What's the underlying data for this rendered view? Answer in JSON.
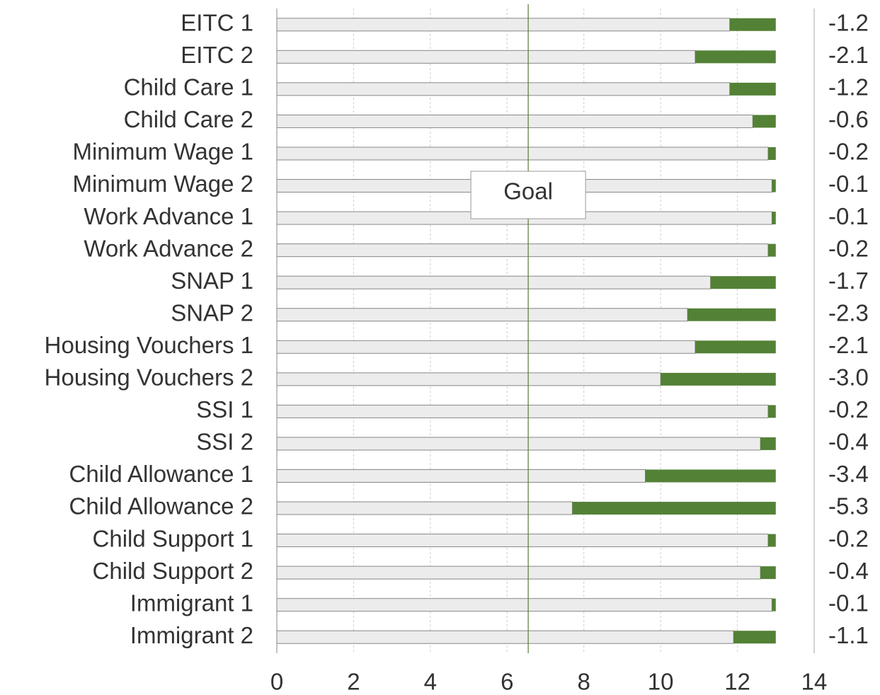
{
  "chart_data": {
    "type": "bar",
    "categories": [
      "EITC 1",
      "EITC 2",
      "Child Care 1",
      "Child Care 2",
      "Minimum Wage 1",
      "Minimum Wage 2",
      "Work Advance 1",
      "Work Advance 2",
      "SNAP 1",
      "SNAP 2",
      "Housing Vouchers 1",
      "Housing Vouchers 2",
      "SSI 1",
      "SSI 2",
      "Child Allowance 1",
      "Child Allowance 2",
      "Child Support 1",
      "Child Support 2",
      "Immigrant 1",
      "Immigrant 2"
    ],
    "series": [
      {
        "color": "#ececec",
        "values": [
          11.8,
          10.9,
          11.8,
          12.4,
          12.8,
          12.9,
          12.9,
          12.8,
          11.3,
          10.7,
          10.9,
          10.0,
          12.8,
          12.6,
          9.6,
          7.7,
          12.8,
          12.6,
          12.9,
          11.9
        ]
      },
      {
        "color": "#538135",
        "values": [
          -1.2,
          -2.1,
          -1.2,
          -0.6,
          -0.2,
          -0.1,
          -0.1,
          -0.2,
          -1.7,
          -2.3,
          -2.1,
          -3.0,
          -0.2,
          -0.4,
          -3.4,
          -5.3,
          -0.2,
          -0.4,
          -0.1,
          -1.1
        ],
        "value_labels": [
          "-1.2",
          "-2.1",
          "-1.2",
          "-0.6",
          "-0.2",
          "-0.1",
          "-0.1",
          "-0.2",
          "-1.7",
          "-2.3",
          "-2.1",
          "-3.0",
          "-0.2",
          "-0.4",
          "-3.4",
          "-5.3",
          "-0.2",
          "-0.4",
          "-0.1",
          "-1.1"
        ]
      }
    ],
    "xlim": [
      0,
      14
    ],
    "xticks": [
      0,
      2,
      4,
      6,
      8,
      10,
      12,
      14
    ],
    "grid": true,
    "annotations": [
      {
        "text": "Goal",
        "x": 6.55
      }
    ]
  }
}
